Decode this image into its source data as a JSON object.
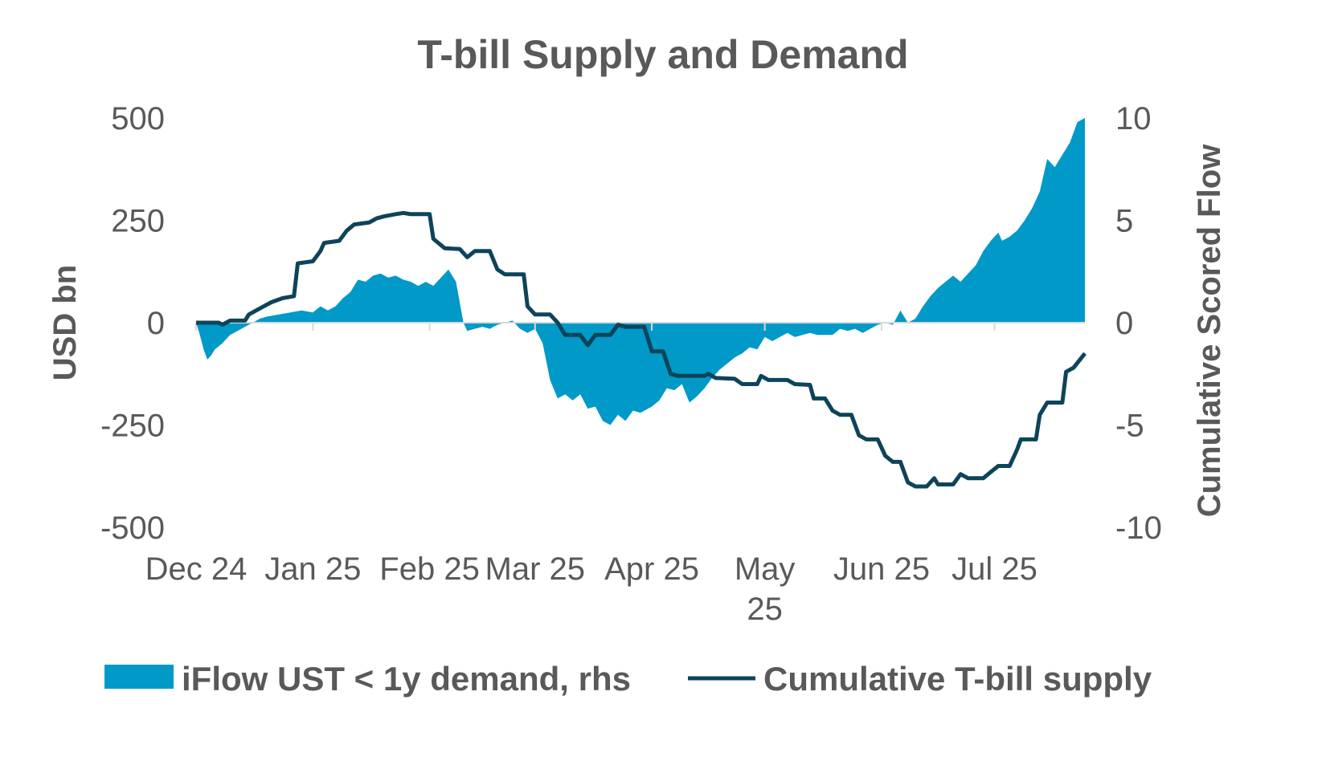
{
  "chart_data": {
    "type": "area+line",
    "title": "T-bill Supply and Demand",
    "y_left": {
      "label": "USD bn",
      "range": [
        -500,
        500
      ],
      "ticks": [
        "500",
        "250",
        "0",
        "-250",
        "-500"
      ],
      "tick_values": [
        500,
        250,
        0,
        -250,
        -500
      ]
    },
    "y_right": {
      "label": "Cumulative Scored Flow",
      "range": [
        -10,
        10
      ],
      "ticks": [
        "10",
        "5",
        "0",
        "-5",
        "-10"
      ],
      "tick_values": [
        10,
        5,
        0,
        -5,
        -10
      ]
    },
    "x_axis": {
      "range": [
        "2024-12-01",
        "2025-07-25"
      ],
      "ticks": [
        {
          "label": [
            "Dec 24"
          ],
          "date": "2024-12-01"
        },
        {
          "label": [
            "Jan 25"
          ],
          "date": "2025-01-01"
        },
        {
          "label": [
            "Feb 25"
          ],
          "date": "2025-02-01"
        },
        {
          "label": [
            "Mar 25"
          ],
          "date": "2025-03-01"
        },
        {
          "label": [
            "Apr 25"
          ],
          "date": "2025-04-01"
        },
        {
          "label": [
            "May",
            "25"
          ],
          "date": "2025-05-01"
        },
        {
          "label": [
            "Jun 25"
          ],
          "date": "2025-06-01"
        },
        {
          "label": [
            "Jul 25"
          ],
          "date": "2025-07-01"
        }
      ]
    },
    "grid": false,
    "legend_position": "bottom",
    "series": [
      {
        "name": "iFlow UST < 1y demand, rhs",
        "kind": "area",
        "axis": "right",
        "color": "#0099C8",
        "points": [
          [
            "2024-12-01",
            0.0
          ],
          [
            "2024-12-02",
            -0.6
          ],
          [
            "2024-12-03",
            -1.3
          ],
          [
            "2024-12-04",
            -1.8
          ],
          [
            "2024-12-05",
            -1.6
          ],
          [
            "2024-12-06",
            -1.3
          ],
          [
            "2024-12-08",
            -1.0
          ],
          [
            "2024-12-10",
            -0.6
          ],
          [
            "2024-12-12",
            -0.4
          ],
          [
            "2024-12-14",
            -0.2
          ],
          [
            "2024-12-16",
            0.0
          ],
          [
            "2024-12-18",
            0.2
          ],
          [
            "2024-12-20",
            0.3
          ],
          [
            "2024-12-23",
            0.4
          ],
          [
            "2024-12-26",
            0.5
          ],
          [
            "2024-12-29",
            0.6
          ],
          [
            "2025-01-01",
            0.5
          ],
          [
            "2025-01-03",
            0.8
          ],
          [
            "2025-01-05",
            0.6
          ],
          [
            "2025-01-07",
            0.8
          ],
          [
            "2025-01-09",
            1.2
          ],
          [
            "2025-01-11",
            1.5
          ],
          [
            "2025-01-13",
            2.1
          ],
          [
            "2025-01-15",
            2.0
          ],
          [
            "2025-01-17",
            2.3
          ],
          [
            "2025-01-19",
            2.4
          ],
          [
            "2025-01-21",
            2.2
          ],
          [
            "2025-01-23",
            2.3
          ],
          [
            "2025-01-25",
            2.1
          ],
          [
            "2025-01-27",
            2.0
          ],
          [
            "2025-01-29",
            1.8
          ],
          [
            "2025-01-31",
            2.0
          ],
          [
            "2025-02-02",
            1.8
          ],
          [
            "2025-02-04",
            2.2
          ],
          [
            "2025-02-06",
            2.6
          ],
          [
            "2025-02-08",
            2.0
          ],
          [
            "2025-02-10",
            0.0
          ],
          [
            "2025-02-11",
            -0.4
          ],
          [
            "2025-02-13",
            -0.3
          ],
          [
            "2025-02-15",
            -0.2
          ],
          [
            "2025-02-17",
            -0.3
          ],
          [
            "2025-02-19",
            -0.1
          ],
          [
            "2025-02-21",
            0.0
          ],
          [
            "2025-02-23",
            0.1
          ],
          [
            "2025-02-25",
            -0.3
          ],
          [
            "2025-02-27",
            -0.5
          ],
          [
            "2025-03-01",
            -0.3
          ],
          [
            "2025-03-03",
            -1.0
          ],
          [
            "2025-03-05",
            -2.8
          ],
          [
            "2025-03-07",
            -3.7
          ],
          [
            "2025-03-09",
            -3.5
          ],
          [
            "2025-03-11",
            -3.8
          ],
          [
            "2025-03-13",
            -3.5
          ],
          [
            "2025-03-15",
            -4.2
          ],
          [
            "2025-03-17",
            -4.1
          ],
          [
            "2025-03-19",
            -4.8
          ],
          [
            "2025-03-21",
            -5.0
          ],
          [
            "2025-03-23",
            -4.5
          ],
          [
            "2025-03-25",
            -4.8
          ],
          [
            "2025-03-27",
            -4.3
          ],
          [
            "2025-03-29",
            -4.4
          ],
          [
            "2025-04-01",
            -4.1
          ],
          [
            "2025-04-03",
            -3.8
          ],
          [
            "2025-04-05",
            -3.2
          ],
          [
            "2025-04-07",
            -3.3
          ],
          [
            "2025-04-09",
            -3.0
          ],
          [
            "2025-04-11",
            -3.9
          ],
          [
            "2025-04-13",
            -3.6
          ],
          [
            "2025-04-15",
            -3.2
          ],
          [
            "2025-04-17",
            -2.7
          ],
          [
            "2025-04-19",
            -2.3
          ],
          [
            "2025-04-21",
            -2.0
          ],
          [
            "2025-04-23",
            -1.7
          ],
          [
            "2025-04-25",
            -1.5
          ],
          [
            "2025-04-27",
            -1.2
          ],
          [
            "2025-04-29",
            -1.3
          ],
          [
            "2025-05-01",
            -0.7
          ],
          [
            "2025-05-03",
            -0.9
          ],
          [
            "2025-05-05",
            -0.7
          ],
          [
            "2025-05-07",
            -0.5
          ],
          [
            "2025-05-09",
            -0.7
          ],
          [
            "2025-05-11",
            -0.6
          ],
          [
            "2025-05-13",
            -0.5
          ],
          [
            "2025-05-15",
            -0.6
          ],
          [
            "2025-05-17",
            -0.6
          ],
          [
            "2025-05-19",
            -0.6
          ],
          [
            "2025-05-21",
            -0.3
          ],
          [
            "2025-05-23",
            -0.4
          ],
          [
            "2025-05-25",
            -0.3
          ],
          [
            "2025-05-27",
            -0.5
          ],
          [
            "2025-05-29",
            -0.3
          ],
          [
            "2025-05-31",
            -0.1
          ],
          [
            "2025-06-02",
            0.0
          ],
          [
            "2025-06-04",
            -0.1
          ],
          [
            "2025-06-06",
            0.6
          ],
          [
            "2025-06-08",
            0.0
          ],
          [
            "2025-06-10",
            0.2
          ],
          [
            "2025-06-12",
            0.8
          ],
          [
            "2025-06-14",
            1.3
          ],
          [
            "2025-06-16",
            1.7
          ],
          [
            "2025-06-18",
            2.0
          ],
          [
            "2025-06-20",
            2.3
          ],
          [
            "2025-06-22",
            2.0
          ],
          [
            "2025-06-24",
            2.4
          ],
          [
            "2025-06-26",
            2.8
          ],
          [
            "2025-06-28",
            3.5
          ],
          [
            "2025-06-30",
            4.0
          ],
          [
            "2025-07-02",
            4.4
          ],
          [
            "2025-07-03",
            4.0
          ],
          [
            "2025-07-05",
            4.2
          ],
          [
            "2025-07-07",
            4.5
          ],
          [
            "2025-07-09",
            5.0
          ],
          [
            "2025-07-11",
            5.6
          ],
          [
            "2025-07-13",
            6.4
          ],
          [
            "2025-07-15",
            8.0
          ],
          [
            "2025-07-17",
            7.6
          ],
          [
            "2025-07-19",
            8.2
          ],
          [
            "2025-07-21",
            8.8
          ],
          [
            "2025-07-23",
            9.8
          ],
          [
            "2025-07-25",
            10.0
          ]
        ]
      },
      {
        "name": "Cumulative T-bill supply",
        "kind": "line",
        "axis": "left",
        "color": "#0D4459",
        "points": [
          [
            "2024-12-01",
            0
          ],
          [
            "2024-12-04",
            0
          ],
          [
            "2024-12-07",
            0
          ],
          [
            "2024-12-08",
            -5
          ],
          [
            "2024-12-10",
            5
          ],
          [
            "2024-12-14",
            5
          ],
          [
            "2024-12-15",
            20
          ],
          [
            "2024-12-18",
            35
          ],
          [
            "2024-12-21",
            50
          ],
          [
            "2024-12-24",
            60
          ],
          [
            "2024-12-27",
            65
          ],
          [
            "2024-12-28",
            145
          ],
          [
            "2025-01-01",
            150
          ],
          [
            "2025-01-03",
            175
          ],
          [
            "2025-01-04",
            195
          ],
          [
            "2025-01-08",
            200
          ],
          [
            "2025-01-10",
            225
          ],
          [
            "2025-01-12",
            240
          ],
          [
            "2025-01-16",
            245
          ],
          [
            "2025-01-18",
            255
          ],
          [
            "2025-01-20",
            260
          ],
          [
            "2025-01-23",
            265
          ],
          [
            "2025-01-25",
            268
          ],
          [
            "2025-01-27",
            265
          ],
          [
            "2025-02-01",
            265
          ],
          [
            "2025-02-02",
            205
          ],
          [
            "2025-02-05",
            182
          ],
          [
            "2025-02-09",
            180
          ],
          [
            "2025-02-11",
            160
          ],
          [
            "2025-02-13",
            175
          ],
          [
            "2025-02-17",
            175
          ],
          [
            "2025-02-19",
            130
          ],
          [
            "2025-02-21",
            118
          ],
          [
            "2025-02-26",
            118
          ],
          [
            "2025-02-27",
            40
          ],
          [
            "2025-03-01",
            20
          ],
          [
            "2025-03-05",
            20
          ],
          [
            "2025-03-07",
            0
          ],
          [
            "2025-03-09",
            -30
          ],
          [
            "2025-03-13",
            -30
          ],
          [
            "2025-03-15",
            -55
          ],
          [
            "2025-03-17",
            -30
          ],
          [
            "2025-03-21",
            -30
          ],
          [
            "2025-03-23",
            -5
          ],
          [
            "2025-03-25",
            -10
          ],
          [
            "2025-03-30",
            -10
          ],
          [
            "2025-04-01",
            -70
          ],
          [
            "2025-04-04",
            -70
          ],
          [
            "2025-04-06",
            -125
          ],
          [
            "2025-04-08",
            -130
          ],
          [
            "2025-04-15",
            -130
          ],
          [
            "2025-04-16",
            -125
          ],
          [
            "2025-04-18",
            -135
          ],
          [
            "2025-04-23",
            -137
          ],
          [
            "2025-04-25",
            -150
          ],
          [
            "2025-04-29",
            -150
          ],
          [
            "2025-04-30",
            -130
          ],
          [
            "2025-05-02",
            -140
          ],
          [
            "2025-05-07",
            -140
          ],
          [
            "2025-05-09",
            -150
          ],
          [
            "2025-05-13",
            -152
          ],
          [
            "2025-05-14",
            -185
          ],
          [
            "2025-05-17",
            -185
          ],
          [
            "2025-05-19",
            -215
          ],
          [
            "2025-05-21",
            -225
          ],
          [
            "2025-05-24",
            -225
          ],
          [
            "2025-05-26",
            -275
          ],
          [
            "2025-05-28",
            -285
          ],
          [
            "2025-05-31",
            -285
          ],
          [
            "2025-06-02",
            -325
          ],
          [
            "2025-06-04",
            -340
          ],
          [
            "2025-06-06",
            -340
          ],
          [
            "2025-06-08",
            -390
          ],
          [
            "2025-06-10",
            -400
          ],
          [
            "2025-06-13",
            -400
          ],
          [
            "2025-06-15",
            -380
          ],
          [
            "2025-06-16",
            -395
          ],
          [
            "2025-06-20",
            -395
          ],
          [
            "2025-06-22",
            -370
          ],
          [
            "2025-06-24",
            -380
          ],
          [
            "2025-06-28",
            -380
          ],
          [
            "2025-06-30",
            -365
          ],
          [
            "2025-07-02",
            -350
          ],
          [
            "2025-07-05",
            -350
          ],
          [
            "2025-07-07",
            -310
          ],
          [
            "2025-07-08",
            -285
          ],
          [
            "2025-07-12",
            -285
          ],
          [
            "2025-07-13",
            -225
          ],
          [
            "2025-07-15",
            -195
          ],
          [
            "2025-07-19",
            -195
          ],
          [
            "2025-07-20",
            -120
          ],
          [
            "2025-07-22",
            -110
          ],
          [
            "2025-07-25",
            -75
          ]
        ]
      }
    ]
  }
}
